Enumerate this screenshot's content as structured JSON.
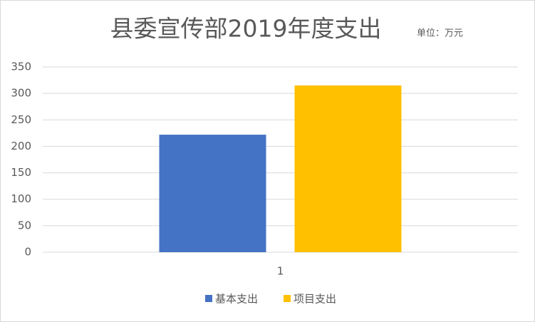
{
  "chart_data": {
    "type": "bar",
    "title": "县委宣传部2019年度支出",
    "subtitle": "单位：万元",
    "categories": [
      "1"
    ],
    "series": [
      {
        "name": "基本支出",
        "color": "#4472c4",
        "values": [
          222
        ]
      },
      {
        "name": "项目支出",
        "color": "#ffc000",
        "values": [
          315
        ]
      }
    ],
    "ylim": [
      0,
      350
    ],
    "yticks": [
      0,
      50,
      100,
      150,
      200,
      250,
      300,
      350
    ],
    "grid": true,
    "legend": "bottom"
  }
}
